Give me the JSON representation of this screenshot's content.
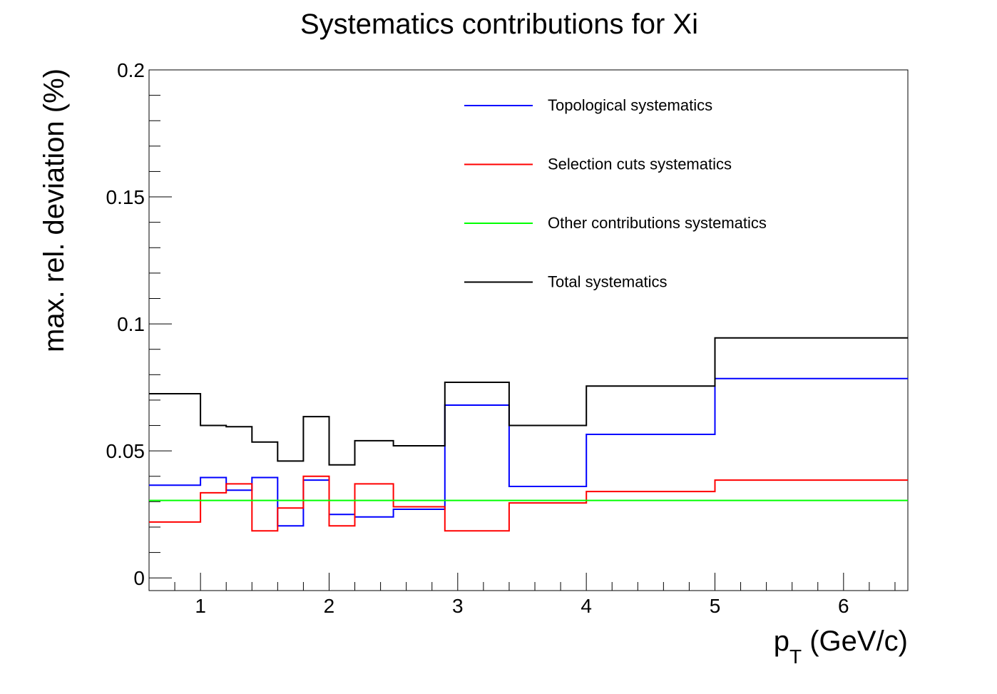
{
  "chart_data": {
    "type": "line",
    "title": "Systematics contributions for Xi",
    "xlabel_main": "p",
    "xlabel_sub": "T",
    "xlabel_rest": " (GeV/c)",
    "ylabel": "max. rel. deviation (%)",
    "xlim": [
      0.6,
      6.5
    ],
    "ylim": [
      -0.005,
      0.2
    ],
    "x_ticks": [
      1,
      2,
      3,
      4,
      5,
      6
    ],
    "x_tick_labels": [
      "1",
      "2",
      "3",
      "4",
      "5",
      "6"
    ],
    "y_ticks": [
      0,
      0.05,
      0.1,
      0.15,
      0.2
    ],
    "y_tick_labels": [
      "0",
      "0.05",
      "0.1",
      "0.15",
      "0.2"
    ],
    "grid": false,
    "legend_position": "top-right",
    "bin_edges": [
      0.6,
      1.0,
      1.2,
      1.4,
      1.6,
      1.8,
      2.0,
      2.2,
      2.5,
      2.9,
      3.4,
      4.0,
      5.0,
      6.5
    ],
    "series": [
      {
        "name": "Topological systematics",
        "color": "#0000ff",
        "values": [
          0.0365,
          0.0395,
          0.0345,
          0.0395,
          0.0205,
          0.0385,
          0.025,
          0.024,
          0.027,
          0.068,
          0.036,
          0.0565,
          0.0785
        ]
      },
      {
        "name": "Selection cuts systematics",
        "color": "#ff0000",
        "values": [
          0.022,
          0.0335,
          0.037,
          0.0185,
          0.0275,
          0.04,
          0.0205,
          0.037,
          0.028,
          0.0185,
          0.0295,
          0.034,
          0.0385
        ]
      },
      {
        "name": "Other contributions systematics",
        "color": "#00ff00",
        "values": [
          0.0305,
          0.0305,
          0.0305,
          0.0305,
          0.0305,
          0.0305,
          0.0305,
          0.0305,
          0.0305,
          0.0305,
          0.0305,
          0.0305,
          0.0305
        ]
      },
      {
        "name": "Total systematics",
        "color": "#000000",
        "values": [
          0.0725,
          0.06,
          0.0595,
          0.0535,
          0.046,
          0.0635,
          0.0445,
          0.054,
          0.052,
          0.077,
          0.06,
          0.0755,
          0.0945
        ]
      }
    ]
  }
}
